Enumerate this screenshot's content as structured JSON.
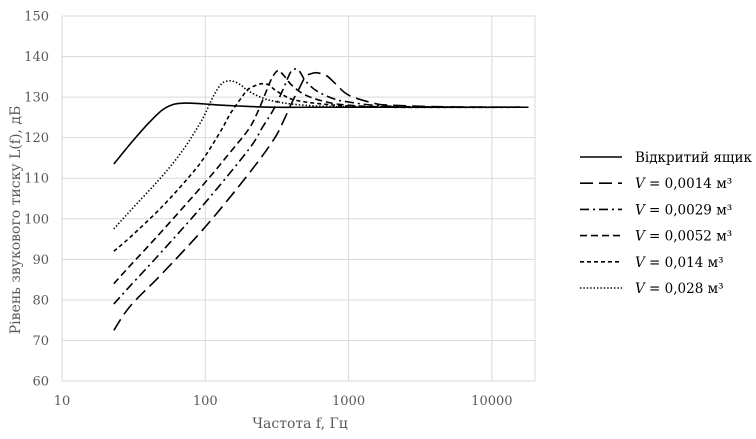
{
  "chart_data": {
    "type": "line",
    "xlabel": "Частота f, Гц",
    "ylabel": "Рівень звукового тиску L(f), дБ",
    "x_scale": "log",
    "xlim": [
      10,
      20000
    ],
    "ylim": [
      60,
      150
    ],
    "x_ticks": [
      10,
      100,
      1000,
      10000
    ],
    "x_tick_labels": [
      "10",
      "100",
      "1000",
      "10000"
    ],
    "y_ticks": [
      60,
      70,
      80,
      90,
      100,
      110,
      120,
      130,
      140,
      150
    ],
    "y_tick_labels": [
      "60",
      "70",
      "80",
      "90",
      "100",
      "110",
      "120",
      "130",
      "140",
      "150"
    ],
    "grid": true,
    "legend_position": "right",
    "series": [
      {
        "name": "Відкритий ящик",
        "label_main": "Відкритий ящик",
        "label_var": "",
        "label_value": "",
        "label_unit": "",
        "dash": "solid",
        "x": [
          23,
          30,
          40,
          50,
          60,
          70,
          80,
          100,
          130,
          200,
          300,
          500,
          1000,
          3000,
          10000,
          18000
        ],
        "y": [
          113.5,
          118.5,
          123.5,
          126.8,
          128.2,
          128.5,
          128.5,
          128.3,
          128.0,
          127.7,
          127.5,
          127.5,
          127.5,
          127.5,
          127.5,
          127.5
        ]
      },
      {
        "name": "V = 0,0014 м³",
        "label_main": "",
        "label_var": "V",
        "label_value": " = 0,0014 ",
        "label_unit": "м³",
        "dash": "long-dash",
        "x": [
          23,
          30,
          50,
          100,
          200,
          300,
          350,
          400,
          450,
          500,
          550,
          600,
          700,
          800,
          1000,
          1500,
          2000,
          5000,
          18000
        ],
        "y": [
          72.5,
          78.5,
          86.5,
          98,
          111,
          119.5,
          124,
          128.5,
          132,
          135,
          135.8,
          136,
          135.3,
          133.5,
          130.5,
          128.5,
          128,
          127.6,
          127.5
        ]
      },
      {
        "name": "V = 0,0029 м³",
        "label_main": "",
        "label_var": "V",
        "label_value": " = 0,0029 ",
        "label_unit": "м³",
        "dash": "dash-dot",
        "x": [
          23,
          30,
          50,
          100,
          200,
          250,
          300,
          350,
          400,
          450,
          500,
          600,
          800,
          1000,
          1500,
          3000,
          18000
        ],
        "y": [
          79,
          83.5,
          92,
          104,
          117,
          122.5,
          127,
          132,
          136.5,
          136.5,
          134,
          131.5,
          129.5,
          128.8,
          128,
          127.6,
          127.5
        ]
      },
      {
        "name": "V = 0,0052 м³",
        "label_main": "",
        "label_var": "V",
        "label_value": " = 0,0052 ",
        "label_unit": "м³",
        "dash": "dash",
        "x": [
          23,
          30,
          50,
          100,
          150,
          200,
          230,
          260,
          290,
          320,
          350,
          400,
          500,
          700,
          1000,
          2000,
          18000
        ],
        "y": [
          84,
          88.5,
          97,
          109,
          116.5,
          122,
          126,
          130.5,
          134.5,
          136.5,
          135.5,
          133,
          130.5,
          128.8,
          128,
          127.6,
          127.5
        ]
      },
      {
        "name": "V = 0,014 м³",
        "label_main": "",
        "label_var": "V",
        "label_value": " = 0,014 ",
        "label_unit": "м³",
        "dash": "short-dash",
        "x": [
          23,
          30,
          50,
          80,
          100,
          130,
          150,
          180,
          200,
          230,
          250,
          280,
          300,
          350,
          400,
          500,
          700,
          1000,
          2000,
          18000
        ],
        "y": [
          92,
          95.5,
          103,
          111,
          115.5,
          122,
          126,
          130,
          132,
          133,
          133.3,
          133,
          132,
          130.5,
          129.5,
          128.8,
          128.2,
          127.8,
          127.5,
          127.5
        ]
      },
      {
        "name": "V = 0,028 м³",
        "label_main": "",
        "label_var": "V",
        "label_value": " = 0,028 ",
        "label_unit": "м³",
        "dash": "dot",
        "x": [
          23,
          30,
          50,
          70,
          90,
          100,
          115,
          130,
          145,
          160,
          180,
          200,
          250,
          300,
          400,
          600,
          1000,
          2000,
          18000
        ],
        "y": [
          97.5,
          102,
          110.5,
          117,
          123,
          126,
          130.5,
          133.3,
          134,
          133.8,
          132.8,
          131.5,
          129.8,
          129,
          128.3,
          127.8,
          127.6,
          127.5,
          127.5
        ]
      }
    ]
  }
}
